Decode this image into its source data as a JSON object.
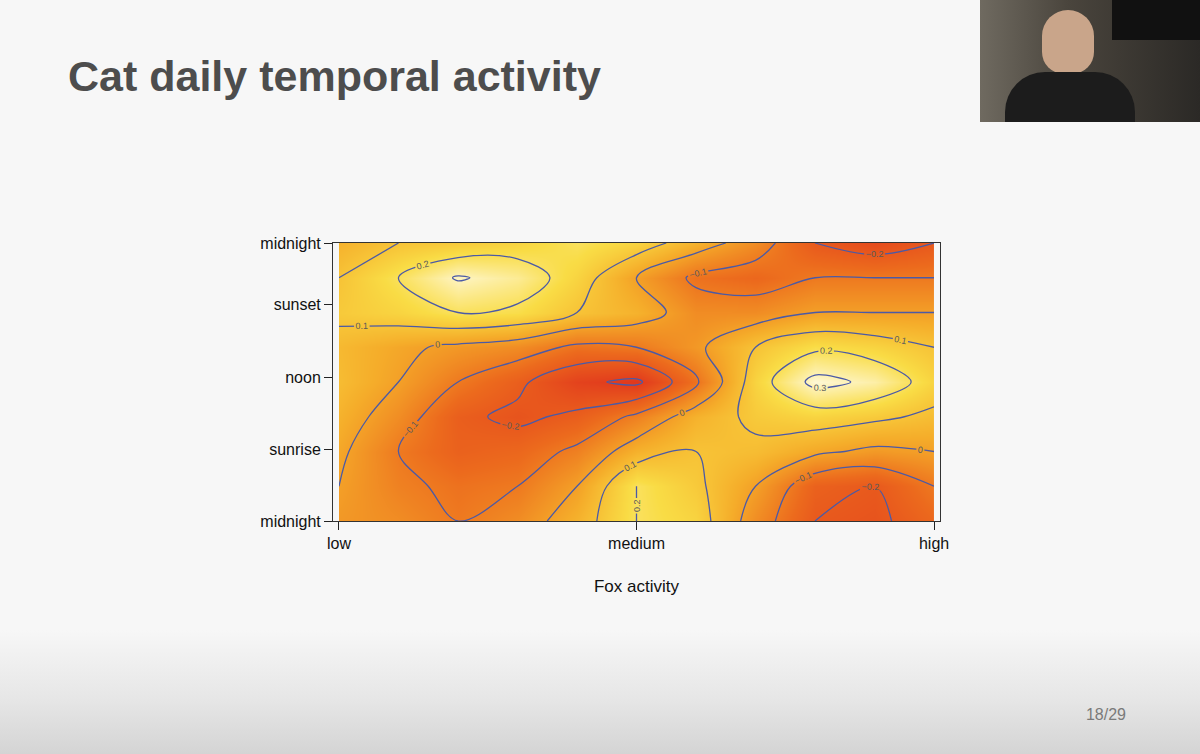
{
  "slide": {
    "page_number": "18/29"
  },
  "chart_data": {
    "type": "contour",
    "title": "Cat daily temporal activity",
    "x_label": "Fox activity",
    "x": [
      0,
      0.1,
      0.2,
      0.3,
      0.4,
      0.5,
      0.6,
      0.7,
      0.8,
      0.9,
      1.0
    ],
    "y": [
      0,
      3,
      6,
      9,
      12,
      15,
      18,
      21,
      24
    ],
    "z": [
      [
        -0.02,
        -0.05,
        -0.1,
        -0.05,
        0.05,
        0.2,
        0.15,
        -0.05,
        -0.2,
        -0.22,
        -0.15
      ],
      [
        0.0,
        -0.08,
        -0.12,
        -0.1,
        0.0,
        0.2,
        0.12,
        0.0,
        -0.17,
        -0.2,
        -0.1
      ],
      [
        0.02,
        -0.1,
        -0.17,
        -0.15,
        -0.08,
        0.05,
        0.1,
        0.08,
        0.02,
        -0.02,
        0.0
      ],
      [
        0.05,
        -0.05,
        -0.18,
        -0.22,
        -0.18,
        -0.08,
        0.05,
        0.12,
        0.15,
        0.12,
        0.08
      ],
      [
        0.08,
        0.0,
        -0.1,
        -0.18,
        -0.28,
        -0.32,
        -0.12,
        0.15,
        0.33,
        0.28,
        0.15
      ],
      [
        0.07,
        0.02,
        -0.02,
        -0.05,
        -0.12,
        -0.1,
        -0.02,
        0.1,
        0.18,
        0.15,
        0.1
      ],
      [
        0.12,
        0.15,
        0.2,
        0.18,
        0.1,
        0.05,
        -0.05,
        -0.05,
        0.0,
        0.0,
        0.0
      ],
      [
        0.1,
        0.2,
        0.31,
        0.26,
        0.15,
        0.0,
        -0.12,
        -0.15,
        -0.1,
        -0.1,
        -0.1
      ],
      [
        0.05,
        0.1,
        0.12,
        0.15,
        0.2,
        0.15,
        0.05,
        -0.05,
        -0.2,
        -0.25,
        -0.2
      ]
    ],
    "levels": [
      -0.3,
      -0.2,
      -0.1,
      0,
      0.1,
      0.2,
      0.3
    ],
    "zlim": [
      -0.35,
      0.35
    ],
    "data_labels": true,
    "xlim": [
      -0.01,
      1.01
    ],
    "xticks": [
      {
        "value": 0,
        "label": "low"
      },
      {
        "value": 0.5,
        "label": "medium"
      },
      {
        "value": 1,
        "label": "high"
      }
    ],
    "ylim": [
      0,
      24
    ],
    "yticks": [
      {
        "value": 0,
        "label": "midnight"
      },
      {
        "value": 6.2,
        "label": "sunrise"
      },
      {
        "value": 12.4,
        "label": "noon"
      },
      {
        "value": 18.7,
        "label": "sunset"
      },
      {
        "value": 24,
        "label": "midnight"
      }
    ]
  }
}
